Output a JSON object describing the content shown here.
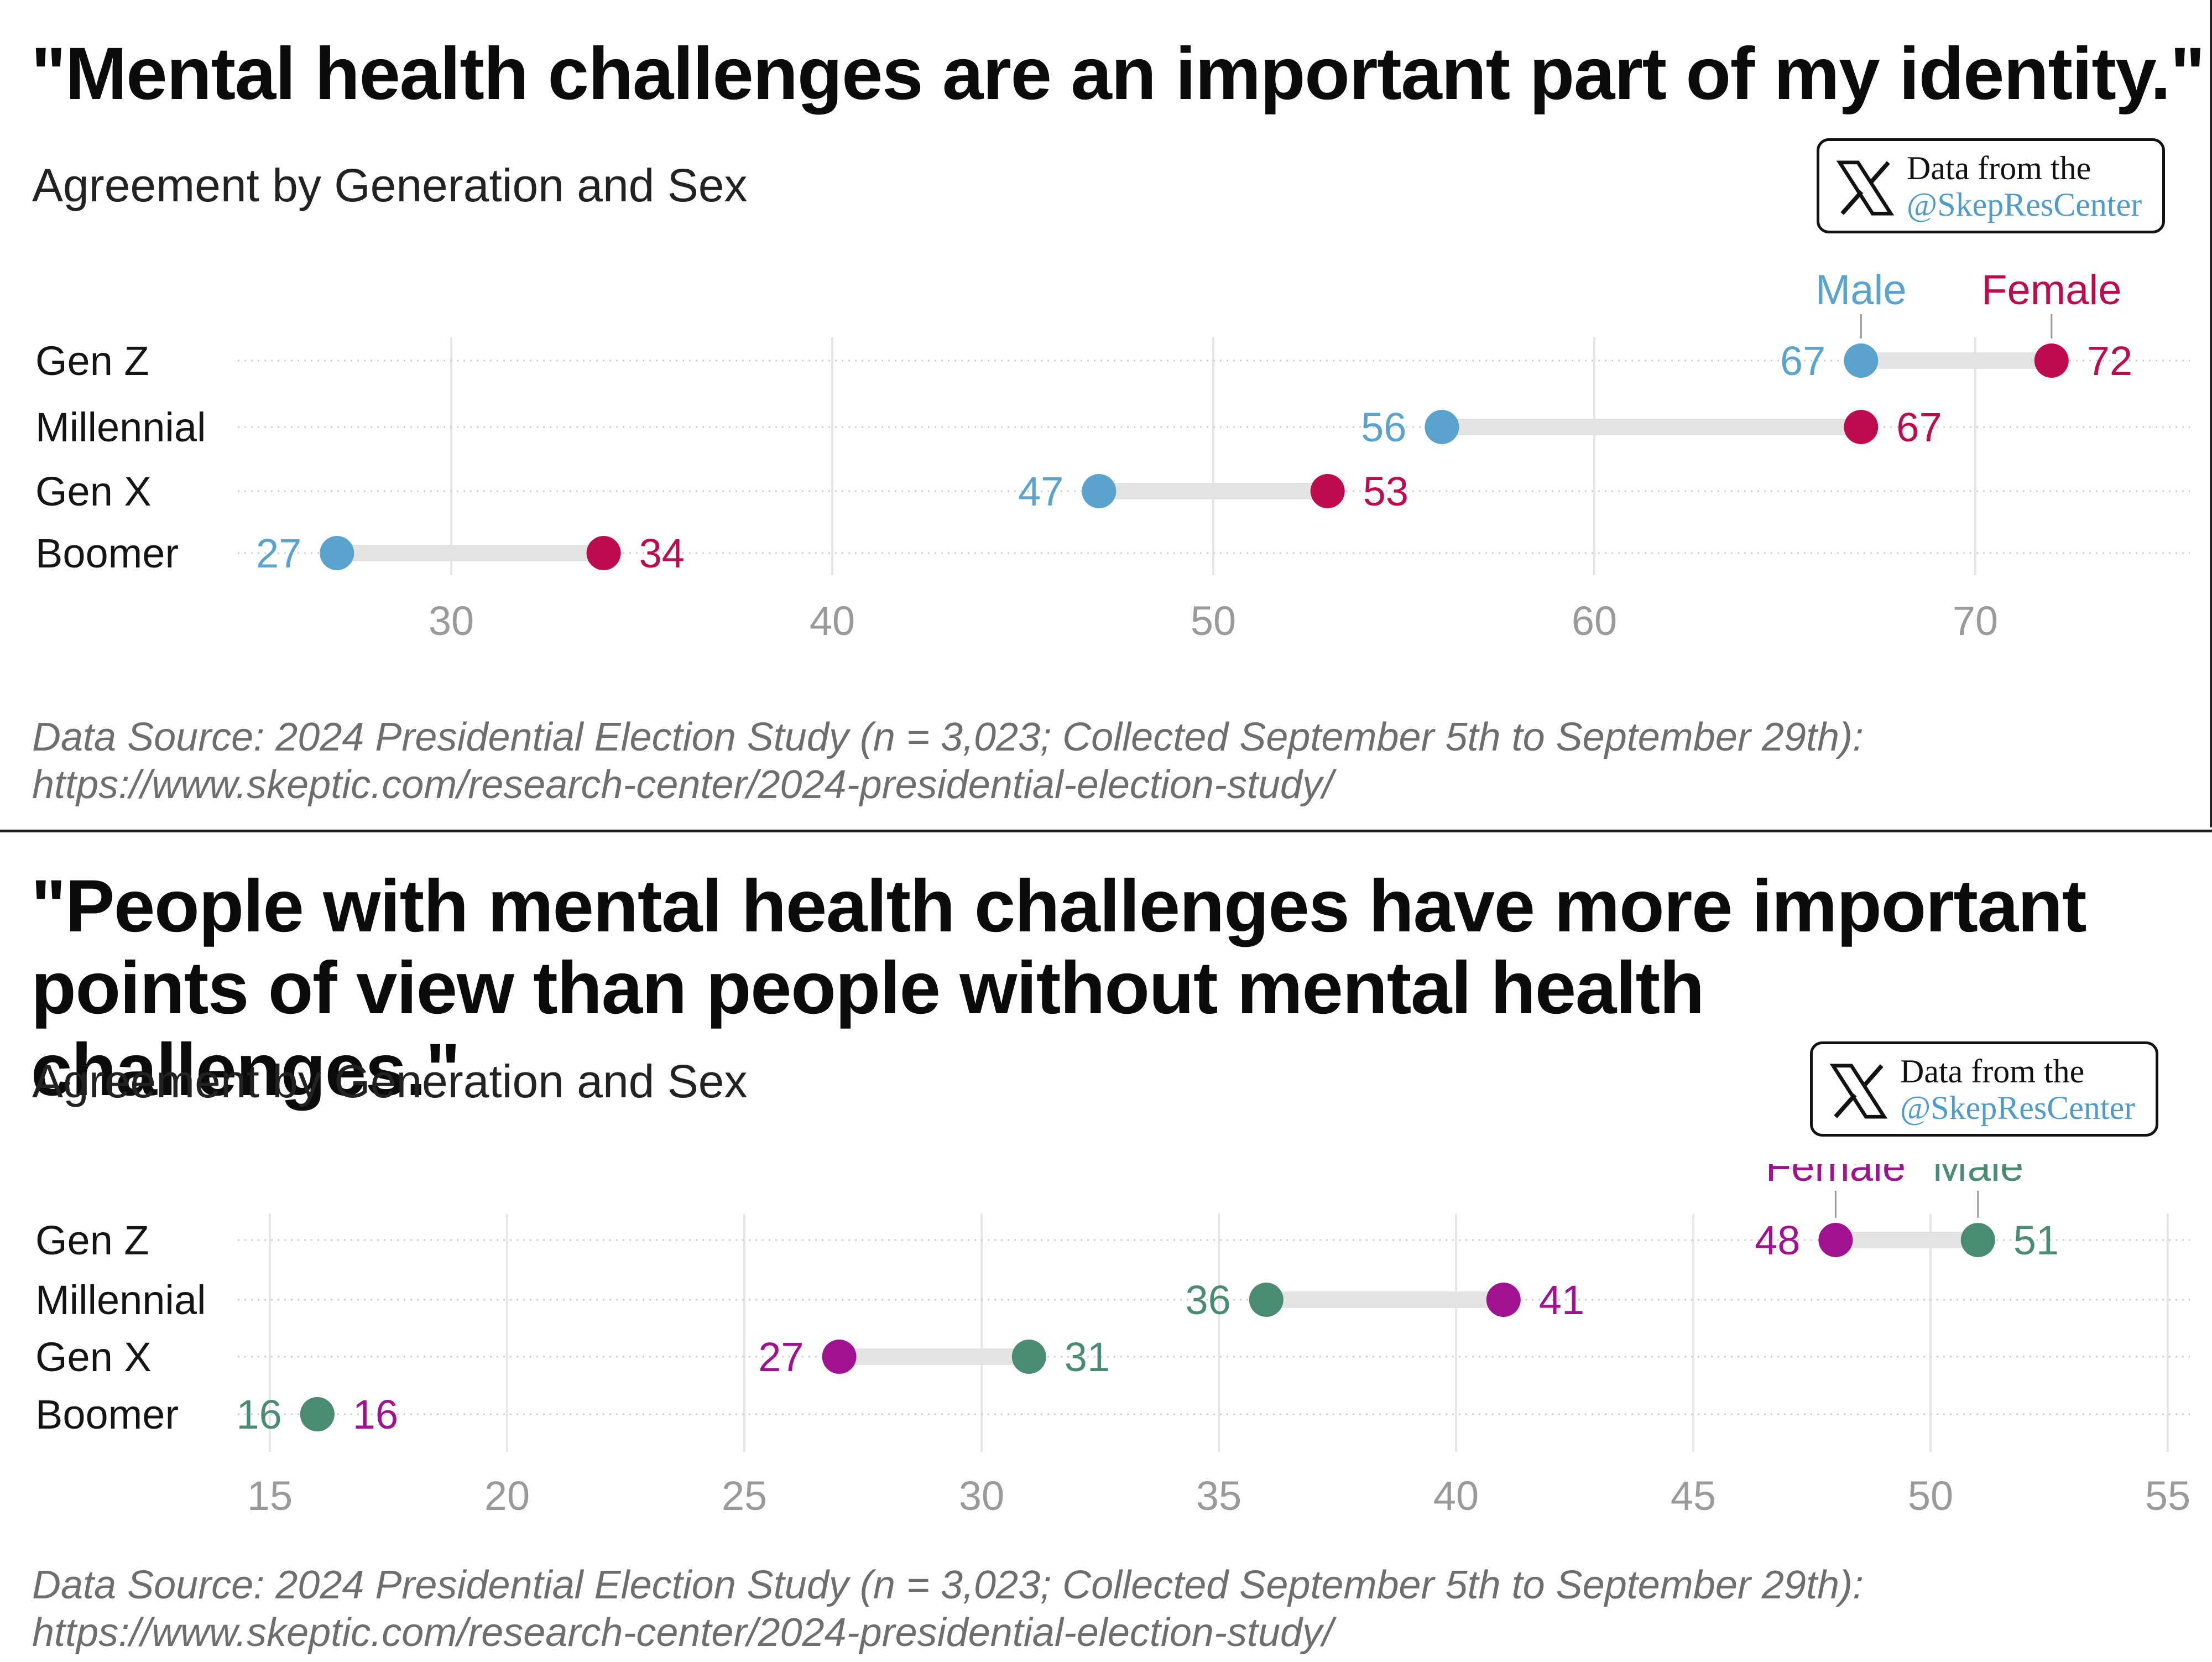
{
  "colors": {
    "male_blue": "#5aa3cf",
    "female_crimson": "#be0b4d",
    "female_magenta": "#a0128f",
    "male_green": "#4a8c72",
    "bar": "#e3e3e3",
    "grid": "#e6e6e6",
    "tick_text": "#9a9a9a"
  },
  "badge": {
    "line1": "Data from the",
    "line2": "@SkepResCenter",
    "icon": "x-logo-icon"
  },
  "panels": [
    {
      "title": "\"Mental health challenges are an important part of my identity.\"",
      "subtitle": "Agreement by Generation and Sex",
      "source_line1": "Data Source: 2024 Presidential Election Study (n = 3,023; Collected September 5th to September 29th):",
      "source_line2": "https://www.skeptic.com/research-center/2024-presidential-election-study/"
    },
    {
      "title": "\"People with mental health challenges have more important points of view than people without mental health challenges.\"",
      "subtitle": "Agreement by Generation and Sex",
      "source_line1": "Data Source: 2024 Presidential Election Study (n = 3,023; Collected September 5th to September 29th):",
      "source_line2": "https://www.skeptic.com/research-center/2024-presidential-election-study/"
    }
  ],
  "chart_data": [
    {
      "type": "dumbbell",
      "title": "\"Mental health challenges are an important part of my identity.\"",
      "subtitle": "Agreement by Generation and Sex",
      "categories": [
        "Gen Z",
        "Millennial",
        "Gen X",
        "Boomer"
      ],
      "series": [
        {
          "name": "Male",
          "color": "#5aa3cf",
          "values": [
            67,
            56,
            47,
            27
          ]
        },
        {
          "name": "Female",
          "color": "#be0b4d",
          "values": [
            72,
            67,
            53,
            34
          ]
        }
      ],
      "xlim": [
        23,
        78
      ],
      "xticks": [
        30,
        40,
        50,
        60,
        70
      ],
      "legend": "direct labels above top row",
      "grid": true
    },
    {
      "type": "dumbbell",
      "title": "\"People with mental health challenges have more important points of view than people without mental health challenges.\"",
      "subtitle": "Agreement by Generation and Sex",
      "categories": [
        "Gen Z",
        "Millennial",
        "Gen X",
        "Boomer"
      ],
      "series": [
        {
          "name": "Female",
          "color": "#a0128f",
          "values": [
            48,
            41,
            27,
            16
          ]
        },
        {
          "name": "Male",
          "color": "#4a8c72",
          "values": [
            51,
            36,
            31,
            16
          ]
        }
      ],
      "xlim": [
        15,
        55
      ],
      "xticks": [
        15,
        20,
        25,
        30,
        35,
        40,
        45,
        50,
        55
      ],
      "legend": "direct labels above top row",
      "grid": true
    }
  ]
}
